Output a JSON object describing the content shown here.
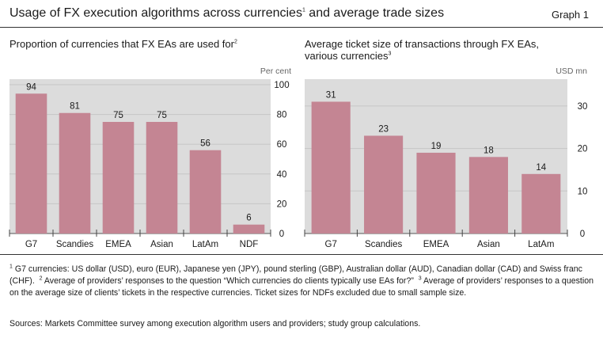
{
  "header": {
    "title": "Usage of FX execution algorithms across currencies",
    "title_sup": "1",
    "title_tail": " and average trade sizes",
    "graph_label": "Graph 1"
  },
  "colors": {
    "bar": "#c48593",
    "plot_bg": "#dcdcdc",
    "grid": "#c6c6c6"
  },
  "chart_data": [
    {
      "type": "bar",
      "title": "Proportion of currencies that FX EAs are used for",
      "title_sup": "2",
      "unit_label": "Per cent",
      "categories": [
        "G7",
        "Scandies",
        "EMEA",
        "Asian",
        "LatAm",
        "NDF"
      ],
      "values": [
        94,
        81,
        75,
        75,
        56,
        6
      ],
      "ylim": [
        0,
        100
      ],
      "yticks": [
        0,
        20,
        40,
        60,
        80,
        100
      ],
      "grid": true
    },
    {
      "type": "bar",
      "title": "Average ticket size of transactions through FX EAs, various currencies",
      "title_sup": "3",
      "unit_label": "USD mn",
      "categories": [
        "G7",
        "Scandies",
        "EMEA",
        "Asian",
        "LatAm"
      ],
      "values": [
        31,
        23,
        19,
        18,
        14
      ],
      "ylim": [
        0,
        35
      ],
      "yticks": [
        0,
        10,
        20,
        30
      ],
      "grid": true
    }
  ],
  "footnotes": {
    "fn1_mark": "1",
    "fn1": " G7 currencies: US dollar (USD), euro (EUR), Japanese yen (JPY), pound sterling (GBP), Australian dollar (AUD), Canadian dollar (CAD) and Swiss franc (CHF).",
    "fn2_mark": "2",
    "fn2": " Average of providers’ responses to the question “Which currencies do clients typically use EAs for?”",
    "fn3_mark": "3",
    "fn3": " Average of providers’ responses to a question on the average size of clients’ tickets in the respective currencies. Ticket sizes for NDFs excluded due to small sample size."
  },
  "sources": "Sources: Markets Committee survey among execution algorithm users and providers; study group calculations."
}
